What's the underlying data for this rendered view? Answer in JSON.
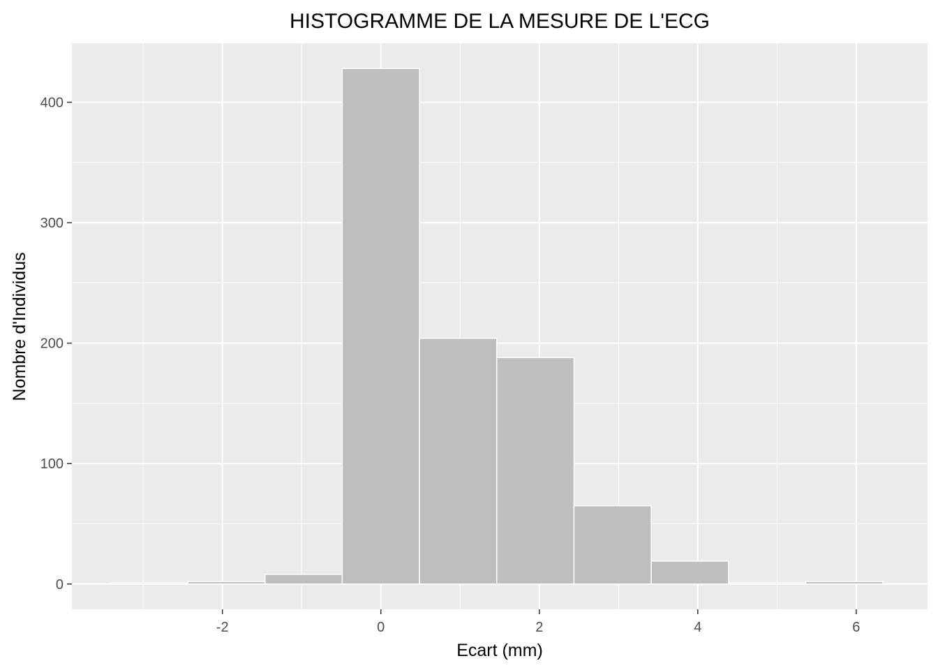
{
  "chart_data": {
    "type": "bar",
    "title": "HISTOGRAMME DE LA MESURE DE L'ECG",
    "xlabel": "Ecart (mm)",
    "ylabel": "Nombre d'Individus",
    "xlim": [
      -3.9,
      6.9
    ],
    "ylim": [
      -21,
      449
    ],
    "x_ticks": [
      -2,
      0,
      2,
      4,
      6
    ],
    "y_ticks": [
      0,
      100,
      200,
      300,
      400
    ],
    "bin_width": 0.975,
    "bins": [
      {
        "center": -2.925,
        "count": 1
      },
      {
        "center": -1.95,
        "count": 2
      },
      {
        "center": -0.975,
        "count": 8
      },
      {
        "center": 0.0,
        "count": 428
      },
      {
        "center": 0.975,
        "count": 204
      },
      {
        "center": 1.95,
        "count": 188
      },
      {
        "center": 2.925,
        "count": 65
      },
      {
        "center": 3.9,
        "count": 19
      },
      {
        "center": 4.875,
        "count": 1
      },
      {
        "center": 5.85,
        "count": 2
      }
    ],
    "grid": true,
    "colors": {
      "panel": "#ebebeb",
      "grid": "#ffffff",
      "bar_fill": "#bebebe",
      "bar_stroke": "#ffffff"
    }
  }
}
